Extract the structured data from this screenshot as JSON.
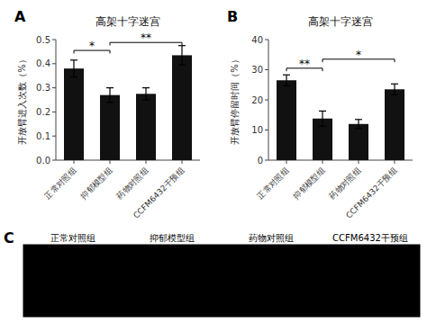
{
  "chart_data": [
    {
      "type": "bar",
      "title": "高架十字迷宫",
      "categories": [
        "正常对照组",
        "抑郁模型组",
        "药物对照组",
        "CCFM6432干预组"
      ],
      "values": [
        0.38,
        0.27,
        0.275,
        0.435
      ],
      "errors": [
        0.035,
        0.03,
        0.025,
        0.04
      ],
      "color": "#111111",
      "y_label": "开放臂进入次数（%）",
      "ylim": [
        0.0,
        0.5
      ],
      "yticks": [
        {
          "value": 0.0,
          "label": "0.0"
        },
        {
          "value": 0.1,
          "label": "0.1"
        },
        {
          "value": 0.2,
          "label": "0.2"
        },
        {
          "value": 0.3,
          "label": "0.3"
        },
        {
          "value": 0.4,
          "label": "0.4"
        },
        {
          "value": 0.5,
          "label": "0.5"
        }
      ],
      "grid": false,
      "annotations": [
        {
          "text": "A"
        },
        {
          "text": "*",
          "from": "正常对照组",
          "to": "抑郁模型组",
          "y": 0.455
        },
        {
          "text": "**",
          "from": "抑郁模型组",
          "to": "CCFM6432干预组",
          "y": 0.488
        }
      ]
    },
    {
      "type": "bar",
      "title": "高架十字迷宫",
      "categories": [
        "正常对照组",
        "抑郁模型组",
        "药物对照组",
        "CCFM6432干预组"
      ],
      "values": [
        26.5,
        13.8,
        12.0,
        23.5
      ],
      "errors": [
        1.8,
        2.5,
        1.5,
        1.8
      ],
      "color": "#111111",
      "y_label": "开放臂停留时间（%）",
      "ylim": [
        0,
        40
      ],
      "yticks": [
        0,
        10,
        20,
        30,
        40
      ],
      "grid": false,
      "annotations": [
        {
          "text": "B"
        },
        {
          "text": "**",
          "from": "正常对照组",
          "to": "抑郁模型组",
          "y": 30.5
        },
        {
          "text": "*",
          "from": "抑郁模型组",
          "to": "CCFM6432干预组",
          "y": 33.5
        }
      ]
    },
    {
      "type": "image",
      "categories": [
        "正常对照组",
        "抑郁模型组",
        "药物对照组",
        "CCFM6432干预组"
      ],
      "annotations": [
        {
          "text": "C"
        }
      ]
    }
  ]
}
